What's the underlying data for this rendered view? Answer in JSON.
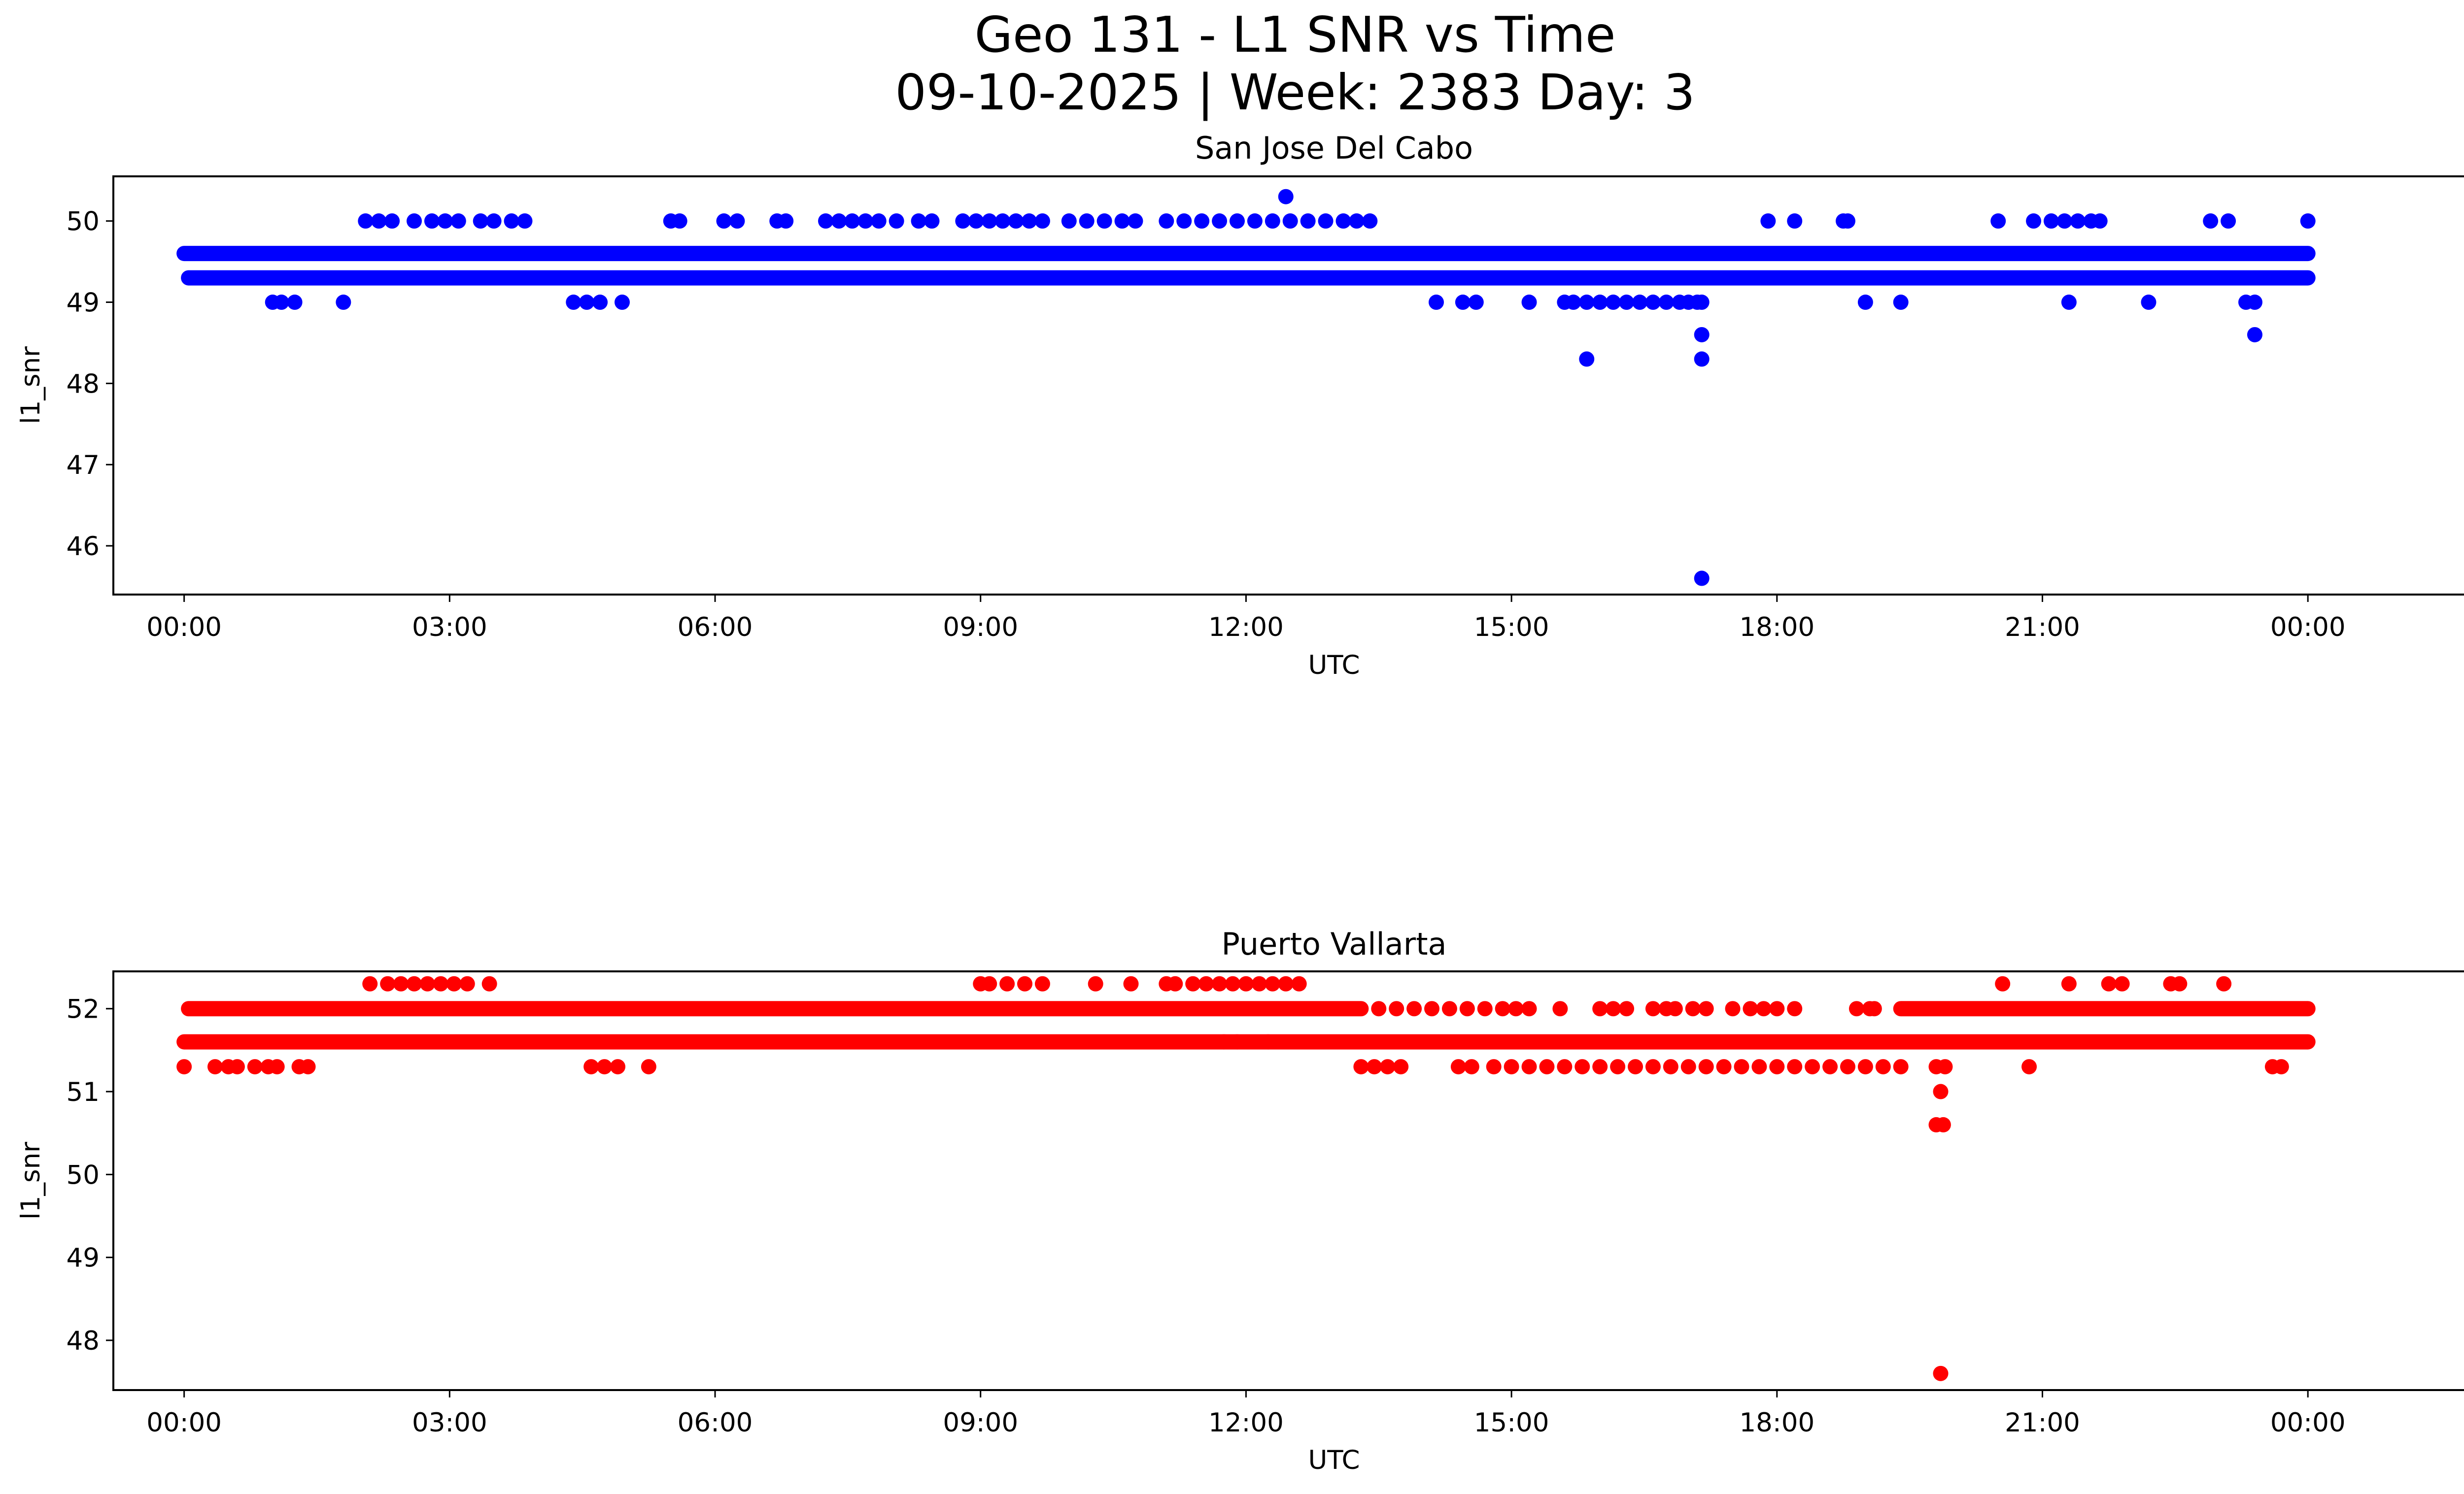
{
  "figure": {
    "title_line1": "Geo 131 - L1 SNR vs Time",
    "title_line2": "09-10-2025 | Week: 2383 Day: 3"
  },
  "chart_data": [
    {
      "type": "scatter",
      "title": "San Jose Del Cabo",
      "xlabel": "UTC",
      "ylabel": "l1_snr",
      "color": "#0000ff",
      "xlim": [
        -0.8,
        26.8
      ],
      "ylim": [
        45.4,
        50.55
      ],
      "x_ticks": [
        0,
        3,
        6,
        9,
        12,
        15,
        18,
        21,
        24
      ],
      "x_tick_labels": [
        "00:00",
        "03:00",
        "06:00",
        "09:00",
        "12:00",
        "15:00",
        "18:00",
        "21:00",
        "00:00"
      ],
      "y_ticks": [
        46,
        47,
        48,
        49,
        50
      ],
      "y_tick_labels": [
        "46",
        "47",
        "48",
        "49",
        "50"
      ],
      "bands": [
        {
          "y": 49.6,
          "x_start": 0,
          "x_end": 24
        },
        {
          "y": 49.3,
          "x_start": 0.05,
          "x_end": 24
        }
      ],
      "x_units": "hours UTC",
      "points": [
        [
          1.0,
          49
        ],
        [
          1.1,
          49
        ],
        [
          1.25,
          49
        ],
        [
          1.8,
          49
        ],
        [
          4.4,
          49
        ],
        [
          4.55,
          49
        ],
        [
          4.7,
          49
        ],
        [
          4.95,
          49
        ],
        [
          14.15,
          49
        ],
        [
          14.45,
          49
        ],
        [
          14.6,
          49
        ],
        [
          15.2,
          49
        ],
        [
          15.6,
          49
        ],
        [
          15.7,
          49
        ],
        [
          15.85,
          49
        ],
        [
          16.0,
          49
        ],
        [
          16.15,
          49
        ],
        [
          16.3,
          49
        ],
        [
          16.45,
          49
        ],
        [
          16.6,
          49
        ],
        [
          16.75,
          49
        ],
        [
          16.9,
          49
        ],
        [
          17.0,
          49
        ],
        [
          17.1,
          49
        ],
        [
          17.15,
          49
        ],
        [
          19.0,
          49
        ],
        [
          19.4,
          49
        ],
        [
          21.3,
          49
        ],
        [
          22.2,
          49
        ],
        [
          23.3,
          49
        ],
        [
          23.4,
          49
        ],
        [
          15.85,
          48.3
        ],
        [
          17.15,
          48.6
        ],
        [
          17.15,
          48.3
        ],
        [
          23.4,
          48.6
        ],
        [
          17.15,
          45.6
        ],
        [
          12.45,
          50.3
        ],
        [
          2.05,
          50
        ],
        [
          2.2,
          50
        ],
        [
          2.35,
          50
        ],
        [
          2.6,
          50
        ],
        [
          2.8,
          50
        ],
        [
          2.95,
          50
        ],
        [
          3.1,
          50
        ],
        [
          3.35,
          50
        ],
        [
          3.5,
          50
        ],
        [
          3.7,
          50
        ],
        [
          3.85,
          50
        ],
        [
          5.5,
          50
        ],
        [
          5.6,
          50
        ],
        [
          6.1,
          50
        ],
        [
          6.25,
          50
        ],
        [
          6.7,
          50
        ],
        [
          6.8,
          50
        ],
        [
          7.25,
          50
        ],
        [
          7.4,
          50
        ],
        [
          7.55,
          50
        ],
        [
          7.7,
          50
        ],
        [
          7.85,
          50
        ],
        [
          8.05,
          50
        ],
        [
          8.3,
          50
        ],
        [
          8.45,
          50
        ],
        [
          8.8,
          50
        ],
        [
          8.95,
          50
        ],
        [
          9.1,
          50
        ],
        [
          9.25,
          50
        ],
        [
          9.4,
          50
        ],
        [
          9.55,
          50
        ],
        [
          9.7,
          50
        ],
        [
          10.0,
          50
        ],
        [
          10.2,
          50
        ],
        [
          10.4,
          50
        ],
        [
          10.6,
          50
        ],
        [
          10.75,
          50
        ],
        [
          11.1,
          50
        ],
        [
          11.3,
          50
        ],
        [
          11.5,
          50
        ],
        [
          11.7,
          50
        ],
        [
          11.9,
          50
        ],
        [
          12.1,
          50
        ],
        [
          12.3,
          50
        ],
        [
          12.5,
          50
        ],
        [
          12.7,
          50
        ],
        [
          12.9,
          50
        ],
        [
          13.1,
          50
        ],
        [
          13.25,
          50
        ],
        [
          13.4,
          50
        ],
        [
          17.9,
          50
        ],
        [
          18.2,
          50
        ],
        [
          18.75,
          50
        ],
        [
          18.8,
          50
        ],
        [
          20.5,
          50
        ],
        [
          20.9,
          50
        ],
        [
          21.1,
          50
        ],
        [
          21.25,
          50
        ],
        [
          21.4,
          50
        ],
        [
          21.55,
          50
        ],
        [
          21.65,
          50
        ],
        [
          22.9,
          50
        ],
        [
          23.1,
          50
        ],
        [
          24.0,
          50
        ]
      ]
    },
    {
      "type": "scatter",
      "title": "Puerto Vallarta",
      "xlabel": "UTC",
      "ylabel": "l1_snr",
      "color": "#ff0000",
      "xlim": [
        -0.8,
        26.8
      ],
      "ylim": [
        47.4,
        52.45
      ],
      "x_ticks": [
        0,
        3,
        6,
        9,
        12,
        15,
        18,
        21,
        24
      ],
      "x_tick_labels": [
        "00:00",
        "03:00",
        "06:00",
        "09:00",
        "12:00",
        "15:00",
        "18:00",
        "21:00",
        "00:00"
      ],
      "y_ticks": [
        48,
        49,
        50,
        51,
        52
      ],
      "y_tick_labels": [
        "48",
        "49",
        "50",
        "51",
        "52"
      ],
      "bands": [
        {
          "y": 52.0,
          "x_start": 0.05,
          "x_end": 13.3
        },
        {
          "y": 52.0,
          "x_start": 19.4,
          "x_end": 24
        },
        {
          "y": 51.6,
          "x_start": 0,
          "x_end": 24
        }
      ],
      "x_units": "hours UTC",
      "points": [
        [
          13.5,
          52
        ],
        [
          13.7,
          52
        ],
        [
          13.9,
          52
        ],
        [
          14.1,
          52
        ],
        [
          14.3,
          52
        ],
        [
          14.5,
          52
        ],
        [
          14.7,
          52
        ],
        [
          14.9,
          52
        ],
        [
          15.05,
          52
        ],
        [
          15.2,
          52
        ],
        [
          15.55,
          52
        ],
        [
          16.0,
          52
        ],
        [
          16.15,
          52
        ],
        [
          16.3,
          52
        ],
        [
          16.6,
          52
        ],
        [
          16.75,
          52
        ],
        [
          16.85,
          52
        ],
        [
          17.05,
          52
        ],
        [
          17.2,
          52
        ],
        [
          17.5,
          52
        ],
        [
          17.7,
          52
        ],
        [
          17.85,
          52
        ],
        [
          18.0,
          52
        ],
        [
          18.2,
          52
        ],
        [
          18.9,
          52
        ],
        [
          19.05,
          52
        ],
        [
          19.1,
          52
        ],
        [
          0,
          51.3
        ],
        [
          0.35,
          51.3
        ],
        [
          0.5,
          51.3
        ],
        [
          0.6,
          51.3
        ],
        [
          0.8,
          51.3
        ],
        [
          0.95,
          51.3
        ],
        [
          1.05,
          51.3
        ],
        [
          1.3,
          51.3
        ],
        [
          1.4,
          51.3
        ],
        [
          4.6,
          51.3
        ],
        [
          4.75,
          51.3
        ],
        [
          4.9,
          51.3
        ],
        [
          5.25,
          51.3
        ],
        [
          13.3,
          51.3
        ],
        [
          13.45,
          51.3
        ],
        [
          13.6,
          51.3
        ],
        [
          13.75,
          51.3
        ],
        [
          14.4,
          51.3
        ],
        [
          14.55,
          51.3
        ],
        [
          14.8,
          51.3
        ],
        [
          15.0,
          51.3
        ],
        [
          15.2,
          51.3
        ],
        [
          15.4,
          51.3
        ],
        [
          15.6,
          51.3
        ],
        [
          15.8,
          51.3
        ],
        [
          16.0,
          51.3
        ],
        [
          16.2,
          51.3
        ],
        [
          16.4,
          51.3
        ],
        [
          16.6,
          51.3
        ],
        [
          16.8,
          51.3
        ],
        [
          17.0,
          51.3
        ],
        [
          17.2,
          51.3
        ],
        [
          17.4,
          51.3
        ],
        [
          17.6,
          51.3
        ],
        [
          17.8,
          51.3
        ],
        [
          18.0,
          51.3
        ],
        [
          18.2,
          51.3
        ],
        [
          18.4,
          51.3
        ],
        [
          18.6,
          51.3
        ],
        [
          18.8,
          51.3
        ],
        [
          19.0,
          51.3
        ],
        [
          19.2,
          51.3
        ],
        [
          19.4,
          51.3
        ],
        [
          19.8,
          51.3
        ],
        [
          19.9,
          51.3
        ],
        [
          20.85,
          51.3
        ],
        [
          23.6,
          51.3
        ],
        [
          23.7,
          51.3
        ],
        [
          19.85,
          51.0
        ],
        [
          19.8,
          50.6
        ],
        [
          19.88,
          50.6
        ],
        [
          19.85,
          47.6
        ],
        [
          11.75,
          51.6
        ],
        [
          11.9,
          51.6
        ],
        [
          12.25,
          51.6
        ],
        [
          2.1,
          52.3
        ],
        [
          2.3,
          52.3
        ],
        [
          2.45,
          52.3
        ],
        [
          2.6,
          52.3
        ],
        [
          2.75,
          52.3
        ],
        [
          2.9,
          52.3
        ],
        [
          3.05,
          52.3
        ],
        [
          3.2,
          52.3
        ],
        [
          3.45,
          52.3
        ],
        [
          9.0,
          52.3
        ],
        [
          9.1,
          52.3
        ],
        [
          9.3,
          52.3
        ],
        [
          9.5,
          52.3
        ],
        [
          9.7,
          52.3
        ],
        [
          10.3,
          52.3
        ],
        [
          10.7,
          52.3
        ],
        [
          11.1,
          52.3
        ],
        [
          11.2,
          52.3
        ],
        [
          11.4,
          52.3
        ],
        [
          11.55,
          52.3
        ],
        [
          11.7,
          52.3
        ],
        [
          11.85,
          52.3
        ],
        [
          12.0,
          52.3
        ],
        [
          12.15,
          52.3
        ],
        [
          12.3,
          52.3
        ],
        [
          12.45,
          52.3
        ],
        [
          12.6,
          52.3
        ],
        [
          20.55,
          52.3
        ],
        [
          21.3,
          52.3
        ],
        [
          21.75,
          52.3
        ],
        [
          21.9,
          52.3
        ],
        [
          22.45,
          52.3
        ],
        [
          22.55,
          52.3
        ],
        [
          23.05,
          52.3
        ]
      ]
    }
  ]
}
